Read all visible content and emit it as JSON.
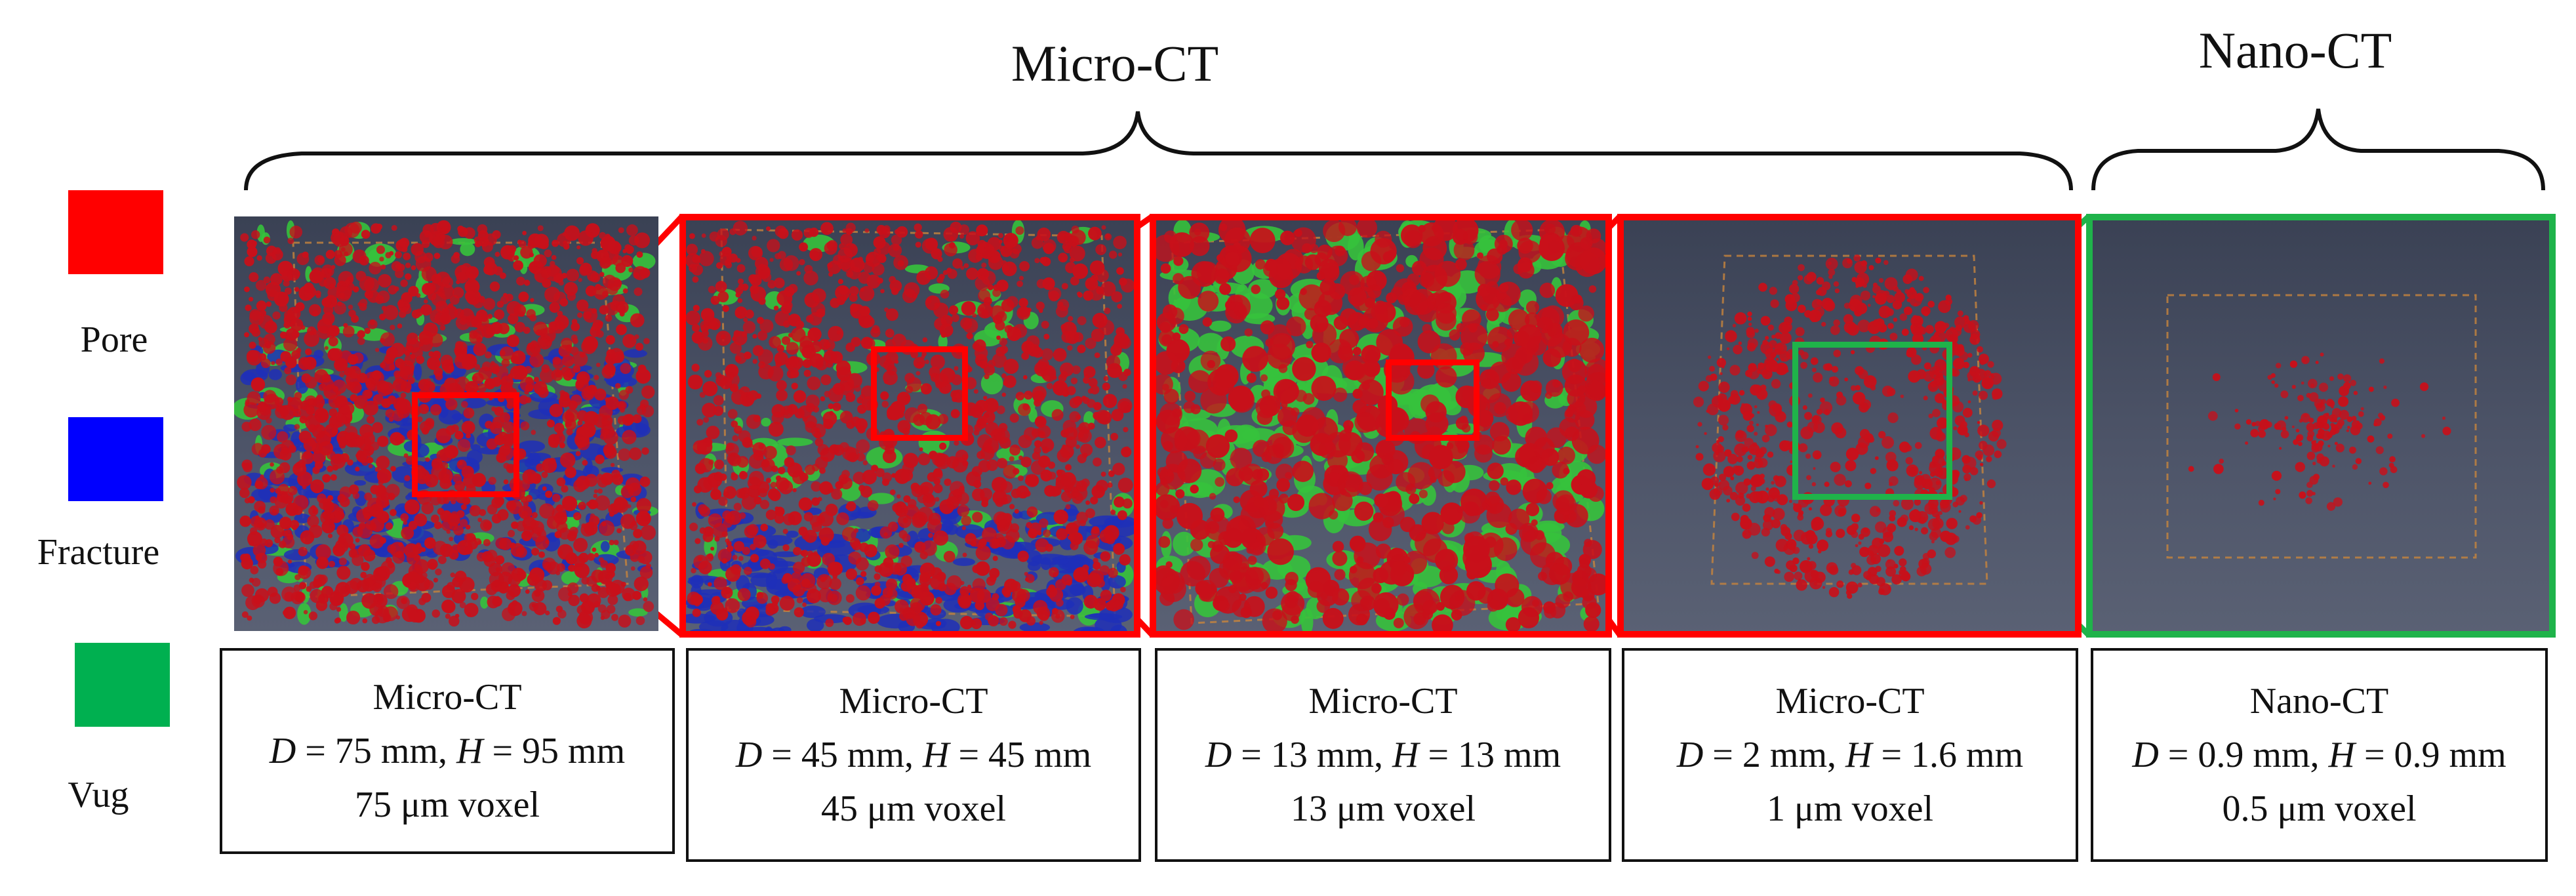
{
  "groups": {
    "micro_ct": "Micro-CT",
    "nano_ct": "Nano-CT"
  },
  "legend": [
    {
      "label": "Pore",
      "color": "#ff0000"
    },
    {
      "label": "Fracture",
      "color": "#0000ff"
    },
    {
      "label": "Vug",
      "color": "#00b050"
    }
  ],
  "colors": {
    "zoom_micro": "#ff0000",
    "zoom_nano": "#1fb34a",
    "pore": "#c8101a",
    "fracture": "#1f2fb8",
    "vug": "#36c23c",
    "panel_bg": "#474e62"
  },
  "panels": [
    {
      "modality": "Micro-CT",
      "d_var": "D",
      "d_text": " = 75 mm, ",
      "h_var": "H",
      "h_text": " = 95 mm",
      "voxel": "75 μm voxel",
      "phases": [
        "pore",
        "fracture",
        "vug"
      ]
    },
    {
      "modality": "Micro-CT",
      "d_var": "D",
      "d_text": " = 45 mm, ",
      "h_var": "H",
      "h_text": " = 45 mm",
      "voxel": "45 μm voxel",
      "phases": [
        "pore",
        "fracture",
        "vug"
      ]
    },
    {
      "modality": "Micro-CT",
      "d_var": "D",
      "d_text": " = 13 mm, ",
      "h_var": "H",
      "h_text": " = 13 mm",
      "voxel": "13 μm voxel",
      "phases": [
        "pore",
        "vug"
      ]
    },
    {
      "modality": "Micro-CT",
      "d_var": "D",
      "d_text": " = 2 mm, ",
      "h_var": "H",
      "h_text": " = 1.6 mm",
      "voxel": "1 μm voxel",
      "phases": [
        "pore"
      ]
    },
    {
      "modality": "Nano-CT",
      "d_var": "D",
      "d_text": " = 0.9 mm, ",
      "h_var": "H",
      "h_text": " = 0.9 mm",
      "voxel": "0.5 μm voxel",
      "phases": [
        "pore"
      ]
    }
  ]
}
